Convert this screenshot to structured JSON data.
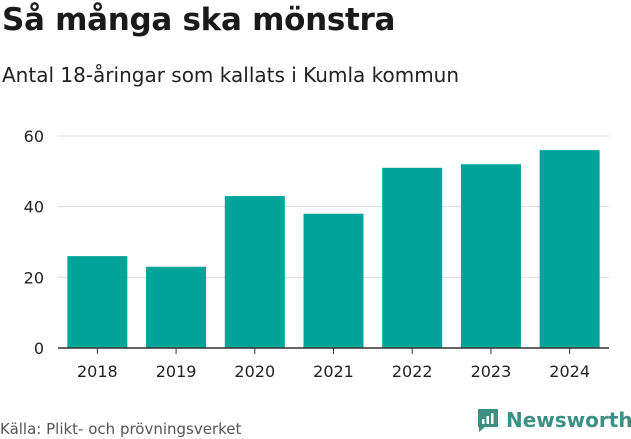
{
  "header": {
    "title": "Så många ska mönstra",
    "subtitle": "Antal 18-åringar som kallats i Kumla kommun"
  },
  "footer": {
    "source": "Källa: Plikt- och prövningsverket",
    "brand": "Newsworthy"
  },
  "colors": {
    "bar": "#00a499",
    "grid": "#dddddd",
    "axis": "#333333",
    "brand": "#3d8f83"
  },
  "chart_data": {
    "type": "bar",
    "title": "Så många ska mönstra",
    "subtitle": "Antal 18-åringar som kallats i Kumla kommun",
    "categories": [
      "2018",
      "2019",
      "2020",
      "2021",
      "2022",
      "2023",
      "2024"
    ],
    "values": [
      26,
      23,
      43,
      38,
      51,
      52,
      56
    ],
    "xlabel": "",
    "ylabel": "",
    "ylim": [
      0,
      60
    ],
    "yticks": [
      0,
      20,
      40,
      60
    ],
    "grid": true,
    "legend": "none"
  }
}
